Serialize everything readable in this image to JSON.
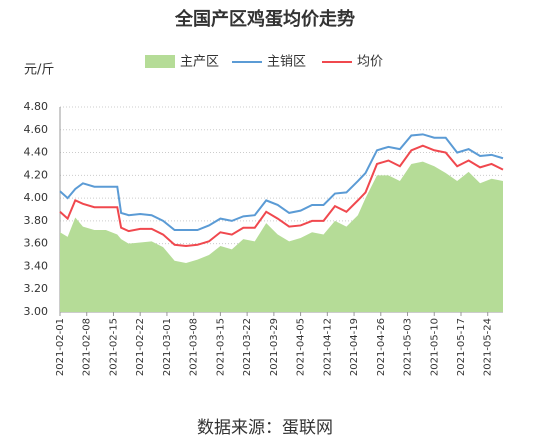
{
  "chart_data": {
    "type": "line",
    "title": "全国产区鸡蛋均价走势",
    "y_label": "元/斤",
    "source": "数据来源：蛋联网",
    "x": [
      "2021-02-01",
      "2021-02-03",
      "2021-02-05",
      "2021-02-07",
      "2021-02-10",
      "2021-02-13",
      "2021-02-16",
      "2021-02-17",
      "2021-02-19",
      "2021-02-22",
      "2021-02-25",
      "2021-02-28",
      "2021-03-03",
      "2021-03-06",
      "2021-03-09",
      "2021-03-12",
      "2021-03-15",
      "2021-03-18",
      "2021-03-21",
      "2021-03-24",
      "2021-03-27",
      "2021-03-30",
      "2021-04-02",
      "2021-04-05",
      "2021-04-08",
      "2021-04-11",
      "2021-04-14",
      "2021-04-17",
      "2021-04-20",
      "2021-04-22",
      "2021-04-25",
      "2021-04-28",
      "2021-05-01",
      "2021-05-04",
      "2021-05-07",
      "2021-05-10",
      "2021-05-13",
      "2021-05-16",
      "2021-05-19",
      "2021-05-22",
      "2021-05-25",
      "2021-05-28"
    ],
    "series": [
      {
        "name": "主产区",
        "kind": "area",
        "color": "#b5dc97",
        "values": [
          3.7,
          3.66,
          3.83,
          3.75,
          3.72,
          3.72,
          3.68,
          3.64,
          3.6,
          3.61,
          3.62,
          3.57,
          3.45,
          3.43,
          3.46,
          3.5,
          3.58,
          3.55,
          3.64,
          3.62,
          3.78,
          3.68,
          3.62,
          3.65,
          3.7,
          3.68,
          3.8,
          3.75,
          3.85,
          4.0,
          4.2,
          4.2,
          4.15,
          4.3,
          4.32,
          4.28,
          4.22,
          4.15,
          4.23,
          4.13,
          4.17,
          4.15
        ]
      },
      {
        "name": "主销区",
        "kind": "line",
        "color": "#5b9bd5",
        "values": [
          4.06,
          4.0,
          4.08,
          4.13,
          4.1,
          4.1,
          4.1,
          3.87,
          3.85,
          3.86,
          3.85,
          3.8,
          3.72,
          3.72,
          3.72,
          3.76,
          3.82,
          3.8,
          3.84,
          3.85,
          3.98,
          3.94,
          3.87,
          3.89,
          3.94,
          3.94,
          4.04,
          4.05,
          4.15,
          4.22,
          4.42,
          4.45,
          4.43,
          4.55,
          4.56,
          4.53,
          4.53,
          4.4,
          4.43,
          4.37,
          4.38,
          4.35
        ]
      },
      {
        "name": "均价",
        "kind": "line",
        "color": "#f0484e",
        "values": [
          3.88,
          3.82,
          3.98,
          3.95,
          3.92,
          3.92,
          3.92,
          3.74,
          3.71,
          3.73,
          3.73,
          3.68,
          3.59,
          3.58,
          3.59,
          3.62,
          3.7,
          3.68,
          3.74,
          3.74,
          3.88,
          3.82,
          3.75,
          3.76,
          3.8,
          3.8,
          3.93,
          3.88,
          3.98,
          4.05,
          4.3,
          4.33,
          4.28,
          4.42,
          4.46,
          4.42,
          4.4,
          4.28,
          4.33,
          4.27,
          4.3,
          4.25
        ]
      }
    ],
    "xlim": [
      "2021-02-01",
      "2021-05-28"
    ],
    "xticks": [
      "2021-02-01",
      "2021-02-08",
      "2021-02-15",
      "2021-02-22",
      "2021-03-01",
      "2021-03-08",
      "2021-03-15",
      "2021-03-22",
      "2021-03-29",
      "2021-04-05",
      "2021-04-12",
      "2021-04-19",
      "2021-04-26",
      "2021-05-03",
      "2021-05-10",
      "2021-05-17",
      "2021-05-24"
    ],
    "ylim": [
      3,
      4.8
    ],
    "yticks": [
      {
        "value": 3,
        "label": "3.00"
      },
      {
        "value": 3.2,
        "label": "3.20"
      },
      {
        "value": 3.4,
        "label": "3.40"
      },
      {
        "value": 3.6,
        "label": "3.60"
      },
      {
        "value": 3.8,
        "label": "3.80"
      },
      {
        "value": 4,
        "label": "4.00"
      },
      {
        "value": 4.2,
        "label": "4.20"
      },
      {
        "value": 4.4,
        "label": "4.40"
      },
      {
        "value": 4.6,
        "label": "4.60"
      },
      {
        "value": 4.8,
        "label": "4.80"
      }
    ],
    "grid": true
  }
}
